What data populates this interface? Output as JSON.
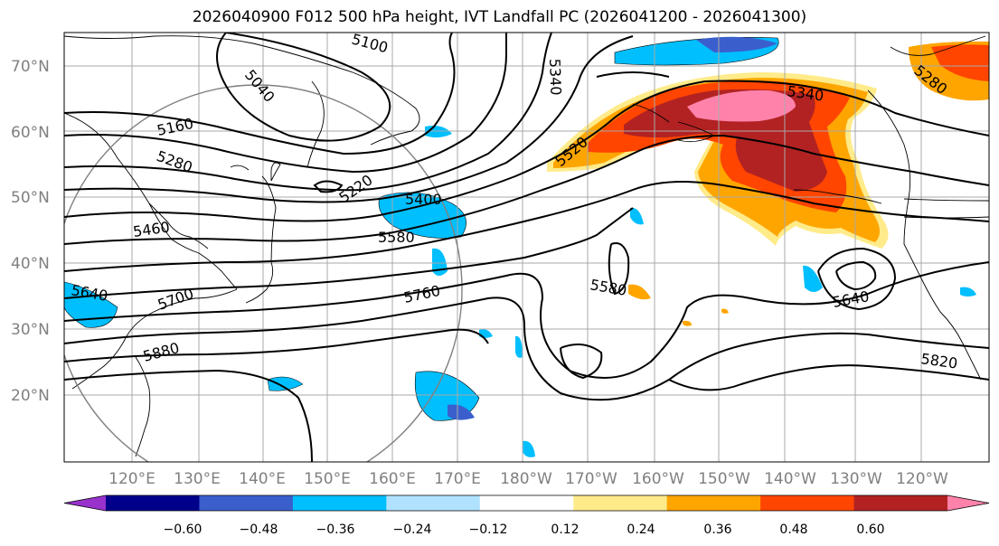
{
  "title": "2026040900 F012 500 hPa height, IVT Landfall PC (2026041200 - 2026041300)",
  "lat_labels": [
    "70°N",
    "60°N",
    "50°N",
    "40°N",
    "30°N",
    "20°N"
  ],
  "lon_labels": [
    "120°E",
    "130°E",
    "140°E",
    "150°E",
    "160°E",
    "170°E",
    "180°W",
    "170°W",
    "160°W",
    "150°W",
    "140°W",
    "130°W",
    "120°W"
  ],
  "contour_labels": [
    "5100",
    "5040",
    "5340",
    "5160",
    "5280",
    "5220",
    "5400",
    "5460",
    "5580",
    "5520",
    "5340",
    "5640",
    "5700",
    "5760",
    "5580",
    "5640",
    "5880",
    "5820",
    "5280"
  ],
  "colorbar": {
    "tick_labels": [
      "−0.60",
      "−0.48",
      "−0.36",
      "−0.24",
      "−0.12",
      "0.12",
      "0.24",
      "0.36",
      "0.48",
      "0.60"
    ],
    "colors": [
      "#9932cc",
      "#00008b",
      "#3a5fcd",
      "#00bfff",
      "#b0e2ff",
      "#ffffff",
      "#ffeb8a",
      "#ffa500",
      "#ff4500",
      "#b22222",
      "#ff82ab"
    ]
  }
}
